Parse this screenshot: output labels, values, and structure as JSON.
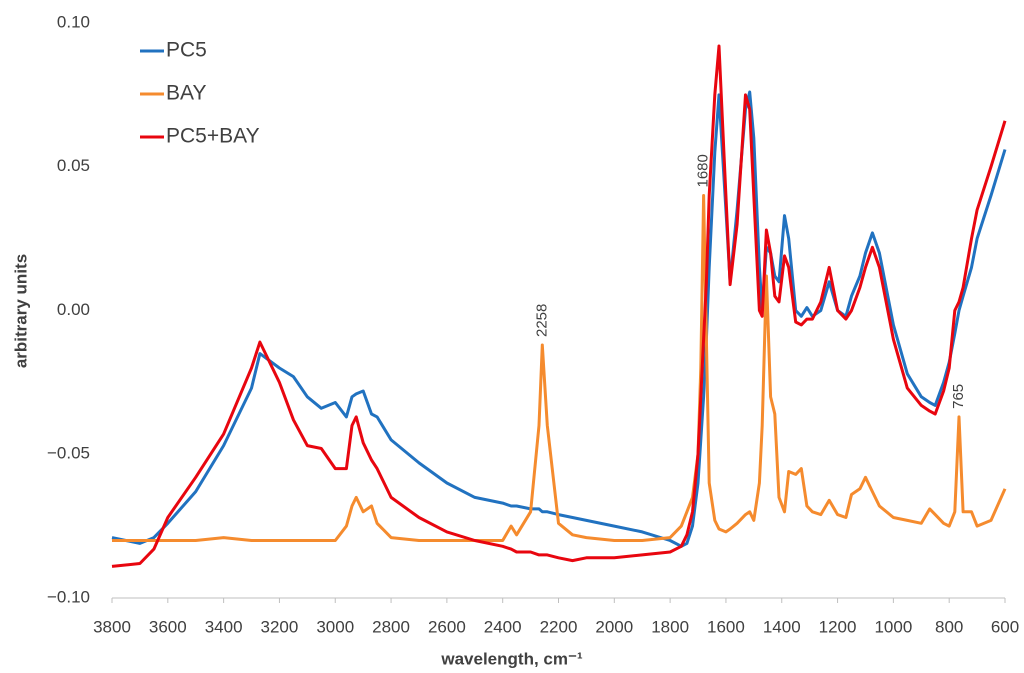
{
  "chart_data": {
    "type": "line",
    "x_label": "wavelength, cm⁻¹",
    "y_label": "arbitrary units",
    "xlim": [
      3800,
      600
    ],
    "xticks": [
      3800,
      3600,
      3400,
      3200,
      3000,
      2800,
      2600,
      2400,
      2200,
      2000,
      1800,
      1600,
      1400,
      1200,
      1000,
      800,
      600
    ],
    "ylim": [
      -0.1,
      0.1
    ],
    "yticks": [
      {
        "value": 0.1,
        "label": "0.10"
      },
      {
        "value": 0.05,
        "label": "0.05"
      },
      {
        "value": 0,
        "label": "0.00"
      },
      {
        "value": -0.05,
        "label": "−0.05"
      },
      {
        "value": -0.1,
        "label": "−0.10"
      }
    ],
    "grid": false,
    "legend": "upper left",
    "x": [
      3800,
      3700,
      3650,
      3600,
      3500,
      3400,
      3300,
      3270,
      3200,
      3150,
      3100,
      3050,
      3000,
      2960,
      2940,
      2925,
      2900,
      2870,
      2850,
      2800,
      2700,
      2600,
      2500,
      2400,
      2370,
      2350,
      2300,
      2270,
      2258,
      2240,
      2200,
      2150,
      2100,
      2000,
      1900,
      1800,
      1760,
      1740,
      1720,
      1700,
      1690,
      1680,
      1670,
      1660,
      1640,
      1625,
      1600,
      1585,
      1560,
      1530,
      1515,
      1500,
      1480,
      1470,
      1455,
      1440,
      1425,
      1410,
      1390,
      1375,
      1350,
      1330,
      1310,
      1290,
      1260,
      1230,
      1200,
      1170,
      1150,
      1120,
      1100,
      1075,
      1050,
      1000,
      950,
      900,
      870,
      850,
      820,
      800,
      780,
      765,
      750,
      720,
      700,
      650,
      600
    ],
    "series": [
      {
        "name": "PC5",
        "color": "#2172c0",
        "values": [
          -0.079,
          -0.081,
          -0.079,
          -0.074,
          -0.063,
          -0.047,
          -0.027,
          -0.015,
          -0.02,
          -0.023,
          -0.03,
          -0.034,
          -0.032,
          -0.037,
          -0.03,
          -0.029,
          -0.028,
          -0.036,
          -0.037,
          -0.045,
          -0.053,
          -0.06,
          -0.065,
          -0.067,
          -0.068,
          -0.068,
          -0.069,
          -0.069,
          -0.07,
          -0.07,
          -0.071,
          -0.072,
          -0.073,
          -0.075,
          -0.077,
          -0.08,
          -0.082,
          -0.081,
          -0.075,
          -0.06,
          -0.045,
          -0.03,
          -0.01,
          0.015,
          0.055,
          0.075,
          0.035,
          0.01,
          0.035,
          0.07,
          0.076,
          0.06,
          0.015,
          0.0,
          0.022,
          0.02,
          0.012,
          0.01,
          0.033,
          0.025,
          0.0,
          -0.002,
          0.001,
          -0.002,
          0.0,
          0.01,
          0.0,
          -0.002,
          0.005,
          0.012,
          0.02,
          0.027,
          0.02,
          -0.005,
          -0.022,
          -0.03,
          -0.032,
          -0.033,
          -0.025,
          -0.018,
          -0.008,
          0.0,
          0.005,
          0.015,
          0.025,
          0.04,
          0.056
        ]
      },
      {
        "name": "BAY",
        "color": "#f58b2e",
        "values": [
          -0.08,
          -0.08,
          -0.08,
          -0.08,
          -0.08,
          -0.079,
          -0.08,
          -0.08,
          -0.08,
          -0.08,
          -0.08,
          -0.08,
          -0.08,
          -0.075,
          -0.068,
          -0.065,
          -0.07,
          -0.068,
          -0.074,
          -0.079,
          -0.08,
          -0.08,
          -0.08,
          -0.08,
          -0.075,
          -0.078,
          -0.07,
          -0.04,
          -0.012,
          -0.04,
          -0.074,
          -0.078,
          -0.079,
          -0.08,
          -0.08,
          -0.079,
          -0.075,
          -0.07,
          -0.065,
          -0.05,
          -0.02,
          0.04,
          -0.01,
          -0.06,
          -0.073,
          -0.076,
          -0.077,
          -0.076,
          -0.074,
          -0.071,
          -0.07,
          -0.073,
          -0.06,
          -0.04,
          0.012,
          -0.03,
          -0.036,
          -0.065,
          -0.07,
          -0.056,
          -0.057,
          -0.055,
          -0.068,
          -0.07,
          -0.071,
          -0.066,
          -0.071,
          -0.072,
          -0.064,
          -0.062,
          -0.058,
          -0.063,
          -0.068,
          -0.072,
          -0.073,
          -0.074,
          -0.069,
          -0.071,
          -0.074,
          -0.075,
          -0.07,
          -0.037,
          -0.07,
          -0.07,
          -0.075,
          -0.073,
          -0.062
        ]
      },
      {
        "name": "PC5+BAY",
        "color": "#e8060f",
        "values": [
          -0.089,
          -0.088,
          -0.083,
          -0.072,
          -0.058,
          -0.043,
          -0.02,
          -0.011,
          -0.025,
          -0.038,
          -0.047,
          -0.048,
          -0.055,
          -0.055,
          -0.04,
          -0.037,
          -0.046,
          -0.052,
          -0.055,
          -0.065,
          -0.072,
          -0.077,
          -0.08,
          -0.082,
          -0.083,
          -0.084,
          -0.084,
          -0.085,
          -0.085,
          -0.085,
          -0.086,
          -0.087,
          -0.086,
          -0.086,
          -0.085,
          -0.084,
          -0.082,
          -0.078,
          -0.07,
          -0.05,
          -0.03,
          -0.01,
          0.01,
          0.04,
          0.075,
          0.092,
          0.04,
          0.009,
          0.03,
          0.075,
          0.07,
          0.04,
          0.0,
          -0.002,
          0.028,
          0.02,
          0.005,
          0.003,
          0.019,
          0.015,
          -0.004,
          -0.005,
          -0.003,
          -0.003,
          0.003,
          0.015,
          0.0,
          -0.003,
          0.0,
          0.008,
          0.015,
          0.022,
          0.015,
          -0.01,
          -0.027,
          -0.033,
          -0.035,
          -0.036,
          -0.028,
          -0.02,
          0.0,
          0.003,
          0.008,
          0.025,
          0.035,
          0.05,
          0.066
        ]
      }
    ],
    "annotations": [
      {
        "text": "2258",
        "x": 2258,
        "y": -0.012
      },
      {
        "text": "1680",
        "x": 1680,
        "y": 0.04
      },
      {
        "text": "765",
        "x": 765,
        "y": -0.037
      }
    ]
  }
}
